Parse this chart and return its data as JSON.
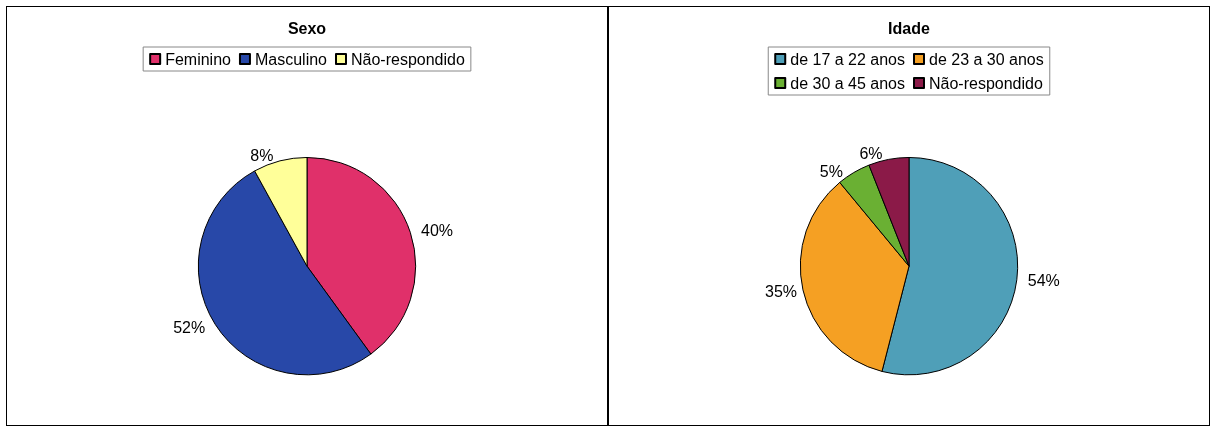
{
  "chart_data": [
    {
      "type": "pie",
      "title": "Sexo",
      "categories": [
        "Feminino",
        "Masculino",
        "Não-respondido"
      ],
      "values": [
        40,
        52,
        8
      ],
      "value_labels": [
        "40%",
        "52%",
        "8%"
      ],
      "colors": [
        "#e0306a",
        "#2848a8",
        "#ffff99"
      ],
      "legend": "top"
    },
    {
      "type": "pie",
      "title": "Idade",
      "categories": [
        "de 17 a 22 anos",
        "de 23 a 30 anos",
        "de 30 a 45 anos",
        "Não-respondido"
      ],
      "values": [
        54,
        35,
        5,
        6
      ],
      "value_labels": [
        "54%",
        "35%",
        "5%",
        "6%"
      ],
      "colors": [
        "#4f9fb8",
        "#f5a023",
        "#6ab033",
        "#8b1a48"
      ],
      "legend": "top"
    }
  ]
}
